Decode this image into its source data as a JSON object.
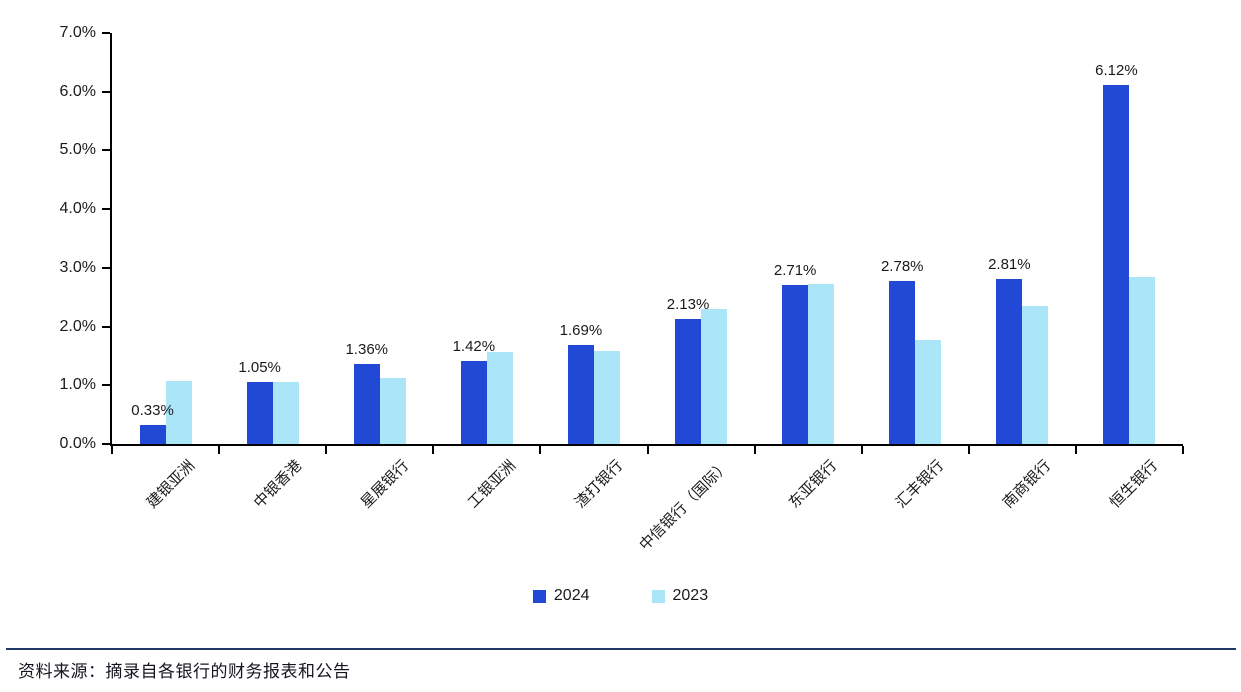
{
  "chart_data": {
    "type": "bar",
    "title": "",
    "xlabel": "",
    "ylabel": "",
    "categories": [
      "建银亚洲",
      "中银香港",
      "星展银行",
      "工银亚洲",
      "渣打银行",
      "中信银行（国际）",
      "东亚银行",
      "汇丰银行",
      "南商银行",
      "恒生银行"
    ],
    "series": [
      {
        "name": "2024",
        "color": "#2149D5",
        "values": [
          0.33,
          1.05,
          1.36,
          1.42,
          1.69,
          2.13,
          2.71,
          2.78,
          2.81,
          6.12
        ],
        "data_labels": [
          "0.33%",
          "1.05%",
          "1.36%",
          "1.42%",
          "1.69%",
          "2.13%",
          "2.71%",
          "2.78%",
          "2.81%",
          "6.12%"
        ]
      },
      {
        "name": "2023",
        "color": "#ABE6F8",
        "values": [
          1.08,
          1.06,
          1.13,
          1.57,
          1.58,
          2.3,
          2.72,
          1.78,
          2.35,
          2.84
        ],
        "data_labels": null
      }
    ],
    "ylim": [
      0,
      7
    ],
    "ytick_step": 1,
    "ytick_labels": [
      "0.0%",
      "1.0%",
      "2.0%",
      "3.0%",
      "4.0%",
      "5.0%",
      "6.0%",
      "7.0%"
    ],
    "grid": false,
    "legend_position": "bottom-center"
  },
  "legend": {
    "items": [
      {
        "label": "2024",
        "color": "#2149D5"
      },
      {
        "label": "2023",
        "color": "#ABE6F8"
      }
    ]
  },
  "footer": {
    "source_text": "资料来源：摘录自各银行的财务报表和公告"
  },
  "colors": {
    "axis": "#000000",
    "footer_rule": "#1F3864",
    "text": "#1a1a1a"
  }
}
